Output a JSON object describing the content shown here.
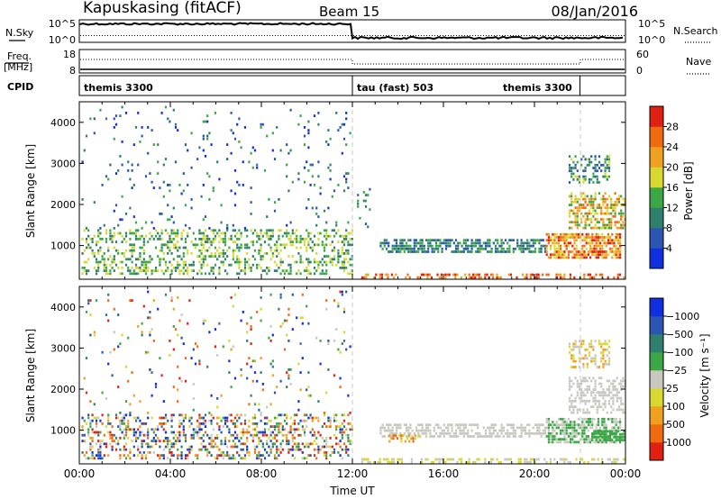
{
  "header": {
    "station": "Kapuskasing (fitACF)",
    "beam": "Beam 15",
    "date": "08/Jan/2016"
  },
  "noise_panel": {
    "left_label": "N.Sky",
    "right_label": "N.Search",
    "ticks": [
      "10^5",
      "10^0"
    ],
    "sky_level_before": 0.82,
    "sky_level_after": 0.2,
    "search_level": 0.3
  },
  "freq_panel": {
    "left_label_1": "Freq.",
    "left_label_2": "[MHz]",
    "right_label": "Nave",
    "left_ticks": [
      "18",
      "8"
    ],
    "right_ticks": [
      "60",
      "0"
    ]
  },
  "cpid_panel": {
    "label": "CPID",
    "segments": [
      {
        "name": "themis 3300",
        "start_hour": 0,
        "end_hour": 12
      },
      {
        "name": "tau (fast) 503",
        "start_hour": 12,
        "end_hour": 22
      },
      {
        "name": "themis 3300",
        "start_hour": 22,
        "end_hour": 24
      }
    ]
  },
  "chart_data": [
    {
      "type": "heatmap",
      "panel": "power",
      "ylabel": "Slant Range [km]",
      "xlim": [
        0,
        24
      ],
      "ylim": [
        180,
        4500
      ],
      "y_ticks": [
        1000,
        2000,
        3000,
        4000
      ],
      "colorbar": {
        "label": "Power [dB]",
        "ticks": [
          "4",
          "8",
          "12",
          "16",
          "20",
          "24",
          "28"
        ],
        "colors": [
          "#1030e0",
          "#2a55b0",
          "#2f7f6f",
          "#3aa845",
          "#d8d830",
          "#f0a020",
          "#f06a10",
          "#e02010"
        ]
      },
      "regions": [
        {
          "t": [
            0.1,
            12
          ],
          "r": [
            300,
            1400
          ],
          "density": 0.35,
          "levels": [
            2,
            4
          ]
        },
        {
          "t": [
            0.1,
            12
          ],
          "r": [
            1400,
            4400
          ],
          "density": 0.04,
          "levels": [
            0,
            3
          ]
        },
        {
          "t": [
            12.2,
            12.8
          ],
          "r": [
            1400,
            2400
          ],
          "density": 0.12,
          "levels": [
            1,
            3
          ]
        },
        {
          "t": [
            12.3,
            24
          ],
          "r": [
            200,
            320
          ],
          "density": 0.45,
          "levels": [
            5,
            7
          ]
        },
        {
          "t": [
            13.2,
            20.5
          ],
          "r": [
            840,
            1160
          ],
          "density": 0.6,
          "levels": [
            1,
            3
          ]
        },
        {
          "t": [
            20.5,
            23.8
          ],
          "r": [
            650,
            1300
          ],
          "density": 0.75,
          "levels": [
            4,
            7
          ]
        },
        {
          "t": [
            21.5,
            24
          ],
          "r": [
            1400,
            2300
          ],
          "density": 0.55,
          "levels": [
            3,
            6
          ]
        },
        {
          "t": [
            21.5,
            23.3
          ],
          "r": [
            2500,
            3200
          ],
          "density": 0.45,
          "levels": [
            1,
            4
          ]
        }
      ]
    },
    {
      "type": "heatmap",
      "panel": "velocity",
      "xlabel": "Time UT",
      "ylabel": "Slant Range [km]",
      "xlim": [
        0,
        24
      ],
      "ylim": [
        180,
        4500
      ],
      "x_ticks": [
        "00:00",
        "04:00",
        "08:00",
        "12:00",
        "16:00",
        "20:00",
        "00:00"
      ],
      "y_ticks": [
        1000,
        2000,
        3000,
        4000
      ],
      "colorbar": {
        "label": "Velocity [m s⁻¹]",
        "ticks": [
          "1000",
          "500",
          "100",
          "25",
          "−25",
          "−100",
          "−500",
          "−1000"
        ],
        "colors": [
          "#e02010",
          "#f06a10",
          "#f0a020",
          "#d8d830",
          "#c8c8c0",
          "#3aa845",
          "#2f7f6f",
          "#2a55b0",
          "#1030e0"
        ]
      },
      "regions": [
        {
          "t": [
            0.1,
            12
          ],
          "r": [
            250,
            1400
          ],
          "density": 0.35,
          "levels": [
            0,
            8
          ]
        },
        {
          "t": [
            0.1,
            12
          ],
          "r": [
            1400,
            4400
          ],
          "density": 0.04,
          "levels": [
            0,
            8
          ]
        },
        {
          "t": [
            12.3,
            24
          ],
          "r": [
            200,
            320
          ],
          "density": 0.4,
          "levels": [
            3,
            4
          ]
        },
        {
          "t": [
            13.2,
            20.5
          ],
          "r": [
            840,
            1160
          ],
          "density": 0.6,
          "levels": [
            4,
            4
          ]
        },
        {
          "t": [
            13.5,
            15
          ],
          "r": [
            700,
            900
          ],
          "density": 0.5,
          "levels": [
            1,
            3
          ]
        },
        {
          "t": [
            20.5,
            23.8
          ],
          "r": [
            700,
            1300
          ],
          "density": 0.7,
          "levels": [
            4,
            5
          ]
        },
        {
          "t": [
            22.5,
            24
          ],
          "r": [
            700,
            1000
          ],
          "density": 0.8,
          "levels": [
            5,
            5
          ]
        },
        {
          "t": [
            21.5,
            24
          ],
          "r": [
            1400,
            2300
          ],
          "density": 0.5,
          "levels": [
            4,
            4
          ]
        },
        {
          "t": [
            21.5,
            23.3
          ],
          "r": [
            2500,
            3200
          ],
          "density": 0.4,
          "levels": [
            2,
            4
          ]
        }
      ]
    }
  ]
}
